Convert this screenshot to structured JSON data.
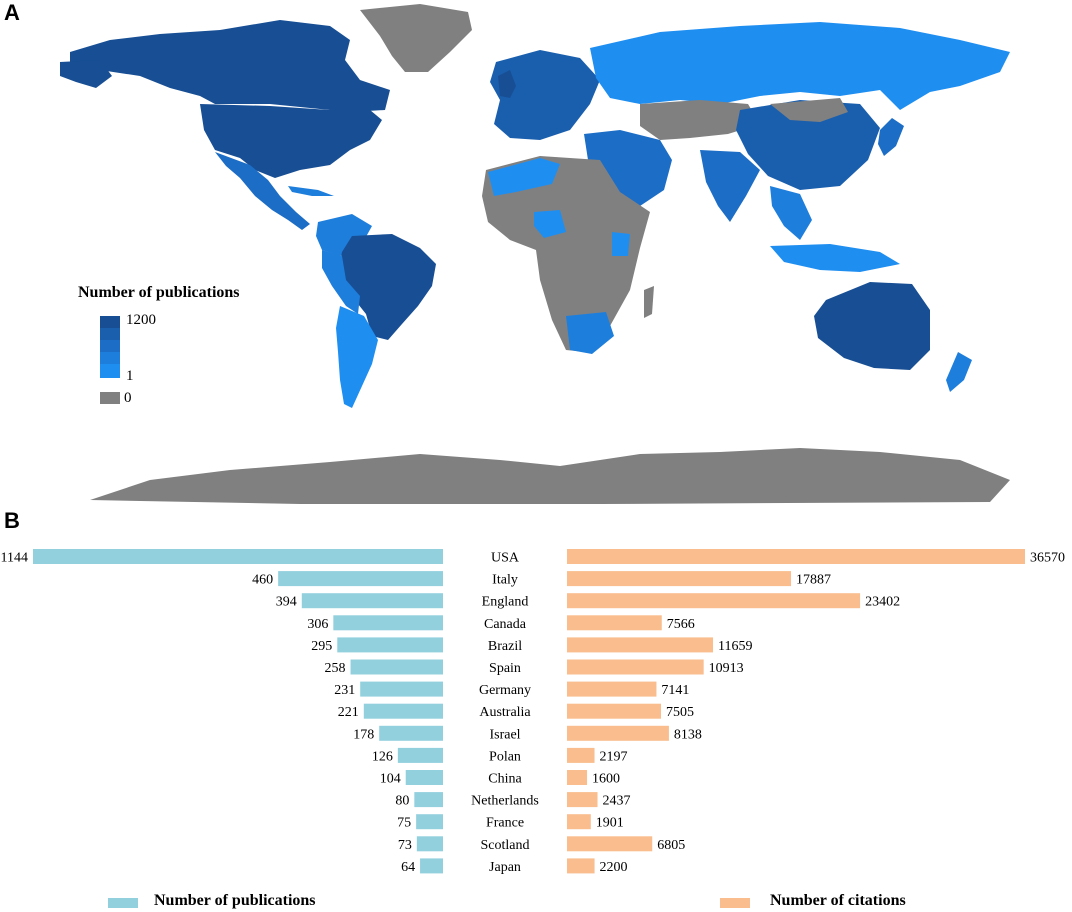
{
  "panels": {
    "a": "A",
    "b": "B"
  },
  "map_legend": {
    "title": "Number of  publications",
    "max_label": "1200",
    "min_label": "1",
    "zero_label": "0",
    "scale_colors": [
      "#174e94",
      "#1a5fae",
      "#1c6dc6",
      "#1e7edc",
      "#1f8ef1"
    ],
    "zero_color": "#808080"
  },
  "chart_data": {
    "type": "bar",
    "categories": [
      "USA",
      "Italy",
      "England",
      "Canada",
      "Brazil",
      "Spain",
      "Germany",
      "Australia",
      "Israel",
      "Polan",
      "China",
      "Netherlands",
      "France",
      "Scotland",
      "Japan"
    ],
    "series": [
      {
        "name": "Number of  publications",
        "color": "#92d0de",
        "values": [
          1144,
          460,
          394,
          306,
          295,
          258,
          231,
          221,
          178,
          126,
          104,
          80,
          75,
          73,
          64
        ]
      },
      {
        "name": "Number of  citations",
        "color": "#f9bd8e",
        "values": [
          36570,
          17887,
          23402,
          7566,
          11659,
          10913,
          7141,
          7505,
          8138,
          2197,
          1600,
          2437,
          1901,
          6805,
          2200
        ]
      }
    ]
  }
}
